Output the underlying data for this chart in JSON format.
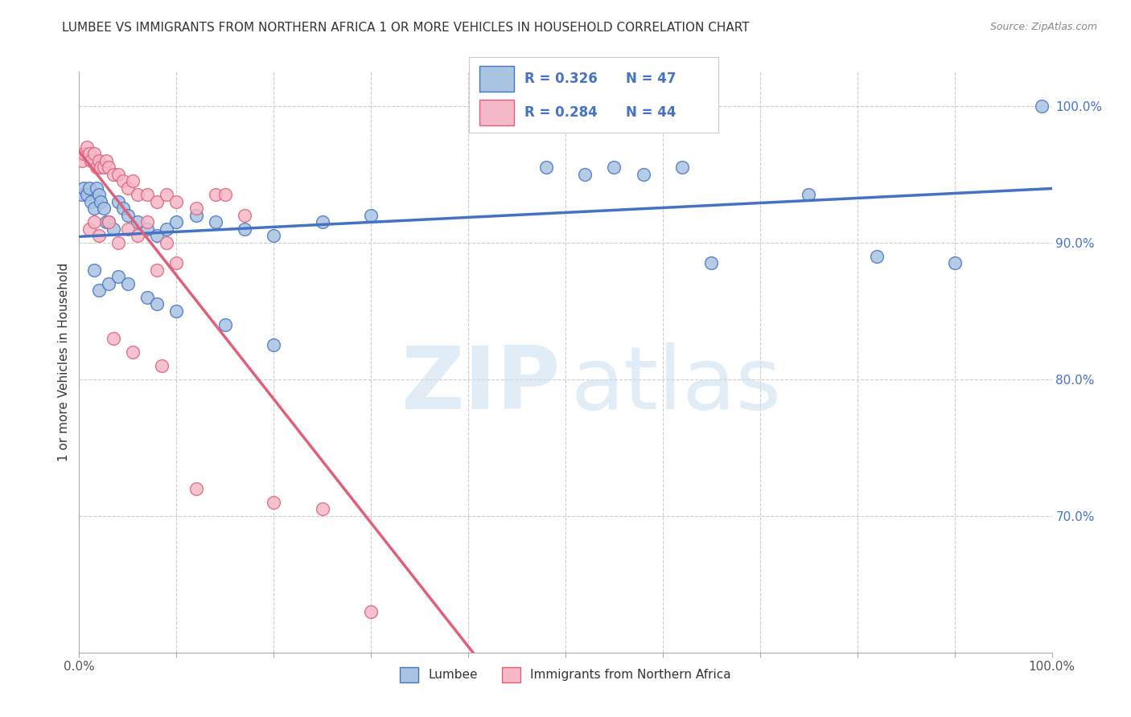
{
  "title": "LUMBEE VS IMMIGRANTS FROM NORTHERN AFRICA 1 OR MORE VEHICLES IN HOUSEHOLD CORRELATION CHART",
  "source": "Source: ZipAtlas.com",
  "ylabel": "1 or more Vehicles in Household",
  "xmin": 0.0,
  "xmax": 100.0,
  "ymin": 60.0,
  "ymax": 102.5,
  "blue_color": "#a8c4e0",
  "pink_color": "#f4b8c8",
  "line_blue": "#4472c4",
  "line_pink": "#e0607a",
  "legend_r1": "R = 0.326",
  "legend_n1": "N = 47",
  "legend_r2": "R = 0.284",
  "legend_n2": "N = 44",
  "lumbee_x": [
    0.3,
    0.5,
    0.8,
    1.0,
    1.2,
    1.5,
    1.8,
    2.0,
    2.2,
    2.5,
    2.8,
    3.0,
    3.5,
    4.0,
    4.5,
    5.0,
    6.0,
    7.0,
    8.0,
    9.0,
    10.0,
    12.0,
    14.0,
    17.0,
    20.0,
    25.0,
    30.0,
    1.5,
    2.0,
    3.0,
    4.0,
    5.0,
    7.0,
    8.0,
    10.0,
    15.0,
    20.0,
    48.0,
    52.0,
    55.0,
    58.0,
    62.0,
    65.0,
    75.0,
    82.0,
    90.0,
    99.0
  ],
  "lumbee_y": [
    93.5,
    94.0,
    93.5,
    94.0,
    93.0,
    92.5,
    94.0,
    93.5,
    93.0,
    92.5,
    91.5,
    91.5,
    91.0,
    93.0,
    92.5,
    92.0,
    91.5,
    91.0,
    90.5,
    91.0,
    91.5,
    92.0,
    91.5,
    91.0,
    90.5,
    91.5,
    92.0,
    88.0,
    86.5,
    87.0,
    87.5,
    87.0,
    86.0,
    85.5,
    85.0,
    84.0,
    82.5,
    95.5,
    95.0,
    95.5,
    95.0,
    95.5,
    88.5,
    93.5,
    89.0,
    88.5,
    100.0
  ],
  "immigrant_x": [
    0.3,
    0.5,
    0.8,
    1.0,
    1.2,
    1.5,
    1.8,
    2.0,
    2.2,
    2.5,
    2.8,
    3.0,
    3.5,
    4.0,
    4.5,
    5.0,
    5.5,
    6.0,
    7.0,
    8.0,
    9.0,
    10.0,
    12.0,
    14.0,
    15.0,
    17.0,
    1.0,
    1.5,
    2.0,
    3.0,
    4.0,
    5.0,
    6.0,
    7.0,
    8.0,
    9.0,
    10.0,
    3.5,
    5.5,
    8.5,
    12.0,
    20.0,
    25.0,
    30.0
  ],
  "immigrant_y": [
    96.0,
    96.5,
    97.0,
    96.5,
    96.0,
    96.5,
    95.5,
    96.0,
    95.5,
    95.5,
    96.0,
    95.5,
    95.0,
    95.0,
    94.5,
    94.0,
    94.5,
    93.5,
    93.5,
    93.0,
    93.5,
    93.0,
    92.5,
    93.5,
    93.5,
    92.0,
    91.0,
    91.5,
    90.5,
    91.5,
    90.0,
    91.0,
    90.5,
    91.5,
    88.0,
    90.0,
    88.5,
    83.0,
    82.0,
    81.0,
    72.0,
    71.0,
    70.5,
    63.0
  ]
}
